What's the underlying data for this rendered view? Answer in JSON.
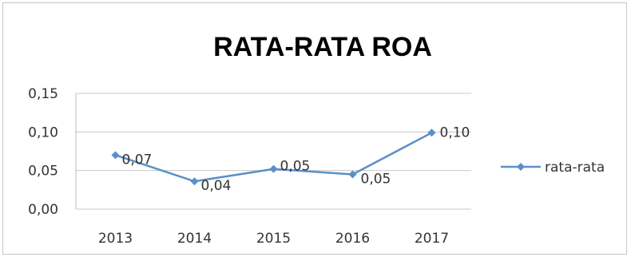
{
  "chart_data": {
    "type": "line",
    "title": "RATA-RATA ROA",
    "xlabel": "",
    "ylabel": "",
    "categories": [
      "2013",
      "2014",
      "2015",
      "2016",
      "2017"
    ],
    "series": [
      {
        "name": "rata-rata",
        "values": [
          0.07,
          0.036,
          0.052,
          0.045,
          0.099
        ],
        "data_labels": [
          "0,07",
          "0,04",
          "0,05",
          "0,05",
          "0,10"
        ],
        "color": "#5b8fc9"
      }
    ],
    "ylim": [
      0,
      0.15
    ],
    "yticks": [
      0,
      0.05,
      0.1,
      0.15
    ],
    "ytick_labels": [
      "0,00",
      "0,05",
      "0,10",
      "0,15"
    ],
    "grid": true,
    "legend": "right"
  }
}
